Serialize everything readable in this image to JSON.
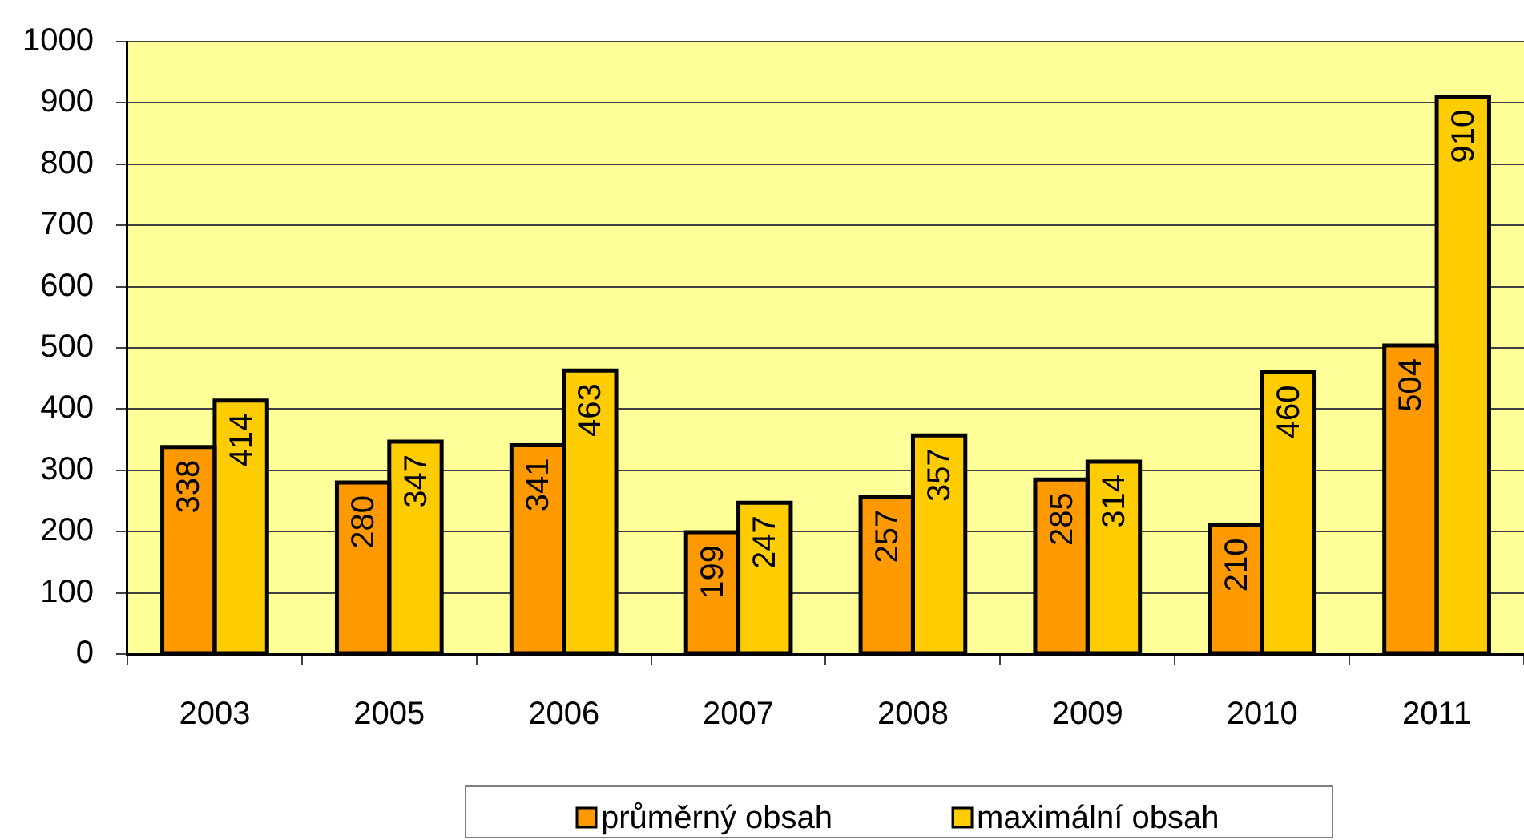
{
  "chart_data": {
    "type": "bar",
    "categories": [
      "2003",
      "2005",
      "2006",
      "2007",
      "2008",
      "2009",
      "2010",
      "2011"
    ],
    "series": [
      {
        "name": "průměrný obsah",
        "color": "#ff9900",
        "values": [
          338,
          280,
          341,
          199,
          257,
          285,
          210,
          504
        ]
      },
      {
        "name": "maximální obsah",
        "color": "#ffcc00",
        "values": [
          414,
          347,
          463,
          247,
          357,
          314,
          460,
          910
        ]
      }
    ],
    "ylim": [
      0,
      1000
    ],
    "yticks": [
      0,
      100,
      200,
      300,
      400,
      500,
      600,
      700,
      800,
      900,
      1000
    ],
    "grid": "y",
    "legend": "bottom",
    "data_labels": true
  }
}
